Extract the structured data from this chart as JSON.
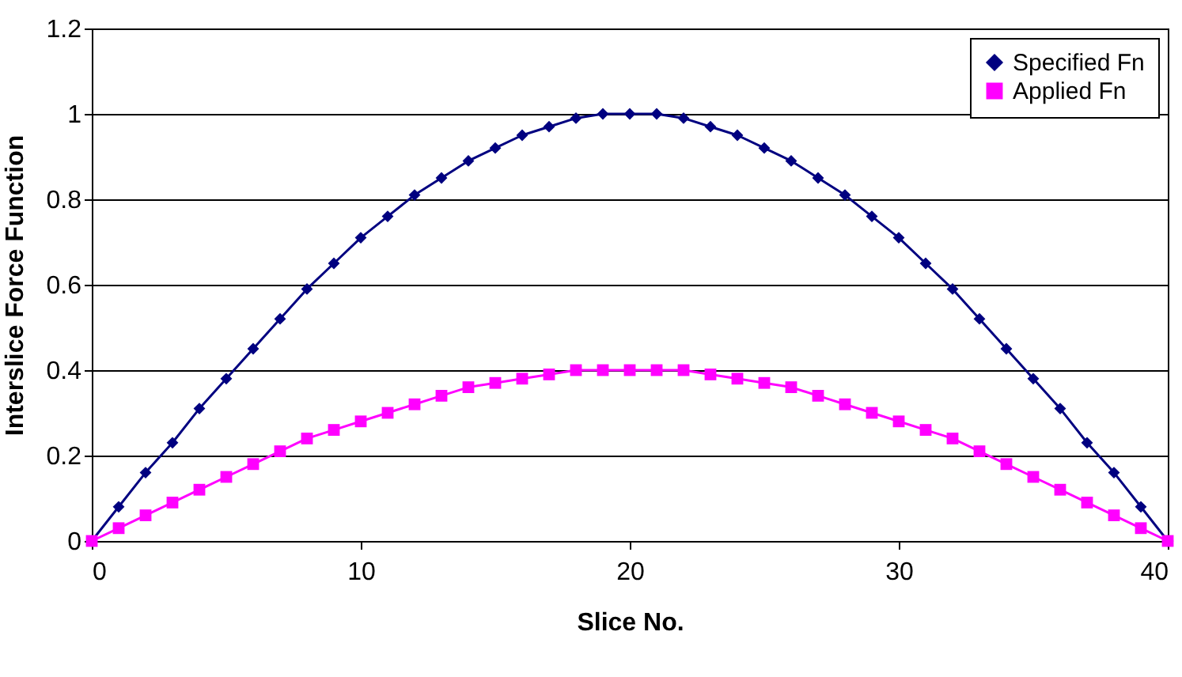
{
  "chart_data": {
    "type": "line",
    "xlabel": "Slice No.",
    "ylabel": "Interslice Force Function",
    "x": [
      0,
      1,
      2,
      3,
      4,
      5,
      6,
      7,
      8,
      9,
      10,
      11,
      12,
      13,
      14,
      15,
      16,
      17,
      18,
      19,
      20,
      21,
      22,
      23,
      24,
      25,
      26,
      27,
      28,
      29,
      30,
      31,
      32,
      33,
      34,
      35,
      36,
      37,
      38,
      39,
      40
    ],
    "series": [
      {
        "name": "Specified Fn",
        "color": "#000080",
        "marker": "diamond",
        "values": [
          0,
          0.08,
          0.16,
          0.23,
          0.31,
          0.38,
          0.45,
          0.52,
          0.59,
          0.65,
          0.71,
          0.76,
          0.81,
          0.85,
          0.89,
          0.92,
          0.95,
          0.97,
          0.99,
          1,
          1,
          1,
          0.99,
          0.97,
          0.95,
          0.92,
          0.89,
          0.85,
          0.81,
          0.76,
          0.71,
          0.65,
          0.59,
          0.52,
          0.45,
          0.38,
          0.31,
          0.23,
          0.16,
          0.08,
          0
        ]
      },
      {
        "name": "Applied Fn",
        "color": "#ff00ff",
        "marker": "square",
        "values": [
          0,
          0.03,
          0.06,
          0.09,
          0.12,
          0.15,
          0.18,
          0.21,
          0.24,
          0.26,
          0.28,
          0.3,
          0.32,
          0.34,
          0.36,
          0.37,
          0.38,
          0.39,
          0.4,
          0.4,
          0.4,
          0.4,
          0.4,
          0.39,
          0.38,
          0.37,
          0.36,
          0.34,
          0.32,
          0.3,
          0.28,
          0.26,
          0.24,
          0.21,
          0.18,
          0.15,
          0.12,
          0.09,
          0.06,
          0.03,
          0
        ]
      }
    ],
    "xlim": [
      0,
      40
    ],
    "xticks": [
      0,
      10,
      20,
      30,
      40
    ],
    "ylim": [
      0,
      1.2
    ],
    "yticks": [
      0,
      0.2,
      0.4,
      0.6,
      0.8,
      1,
      1.2
    ],
    "grid": "y",
    "legend": "top right",
    "line_style": "solid"
  }
}
